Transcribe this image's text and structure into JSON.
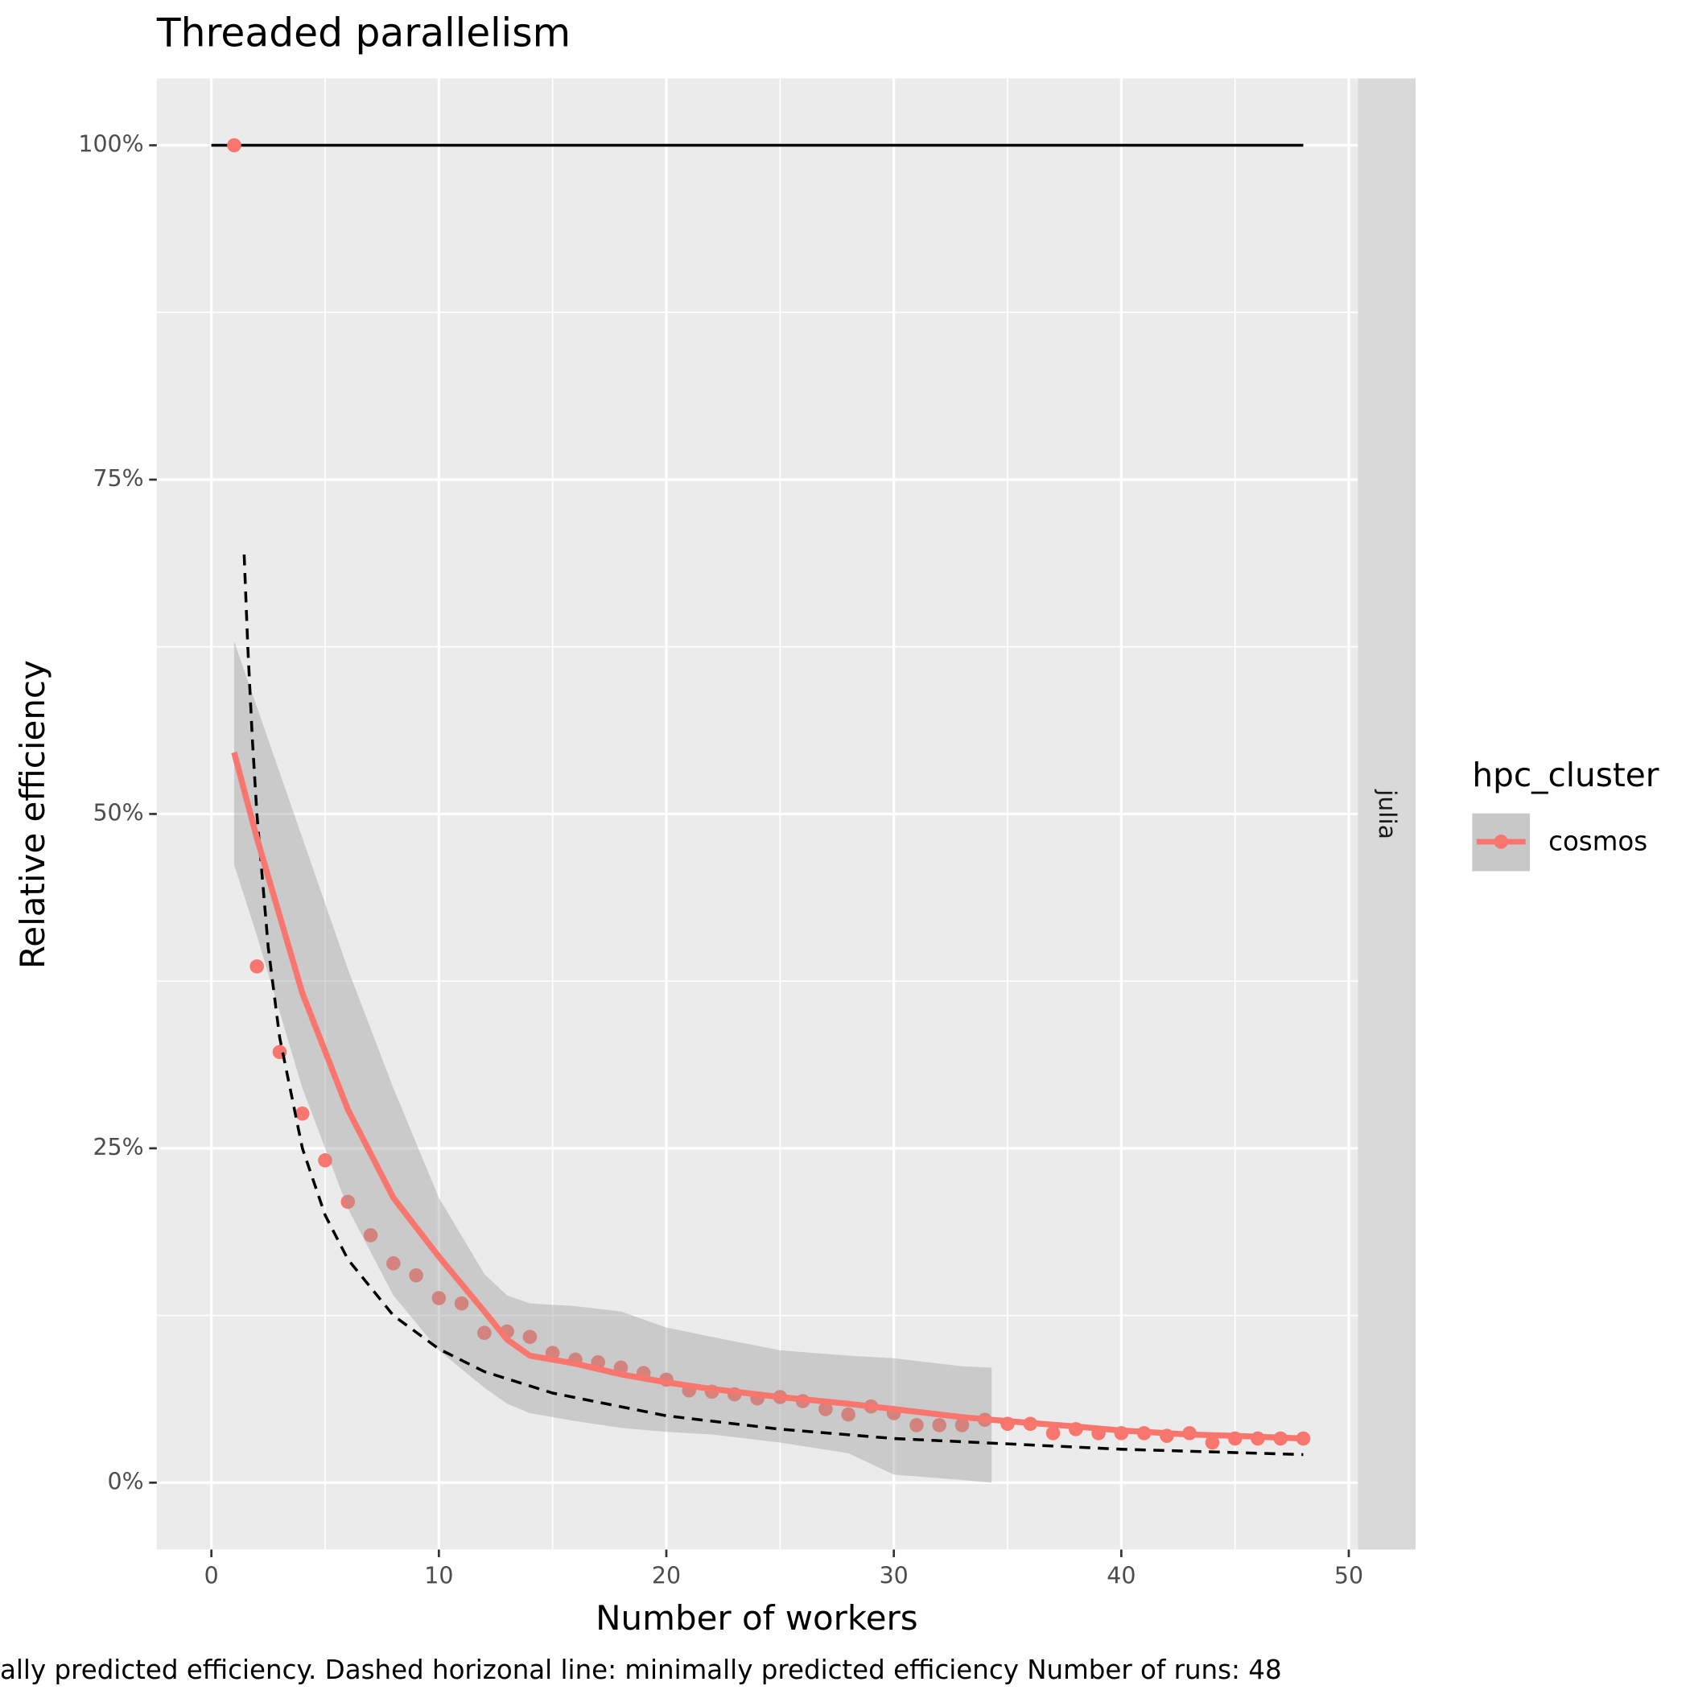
{
  "chart_data": {
    "type": "scatter",
    "title": "Threaded parallelism",
    "x_label": "Number of workers",
    "y_label": "Relative efficiency",
    "caption": "ally predicted efficiency. Dashed horizonal line: minimally predicted efficiency Number of runs: 48",
    "facet": "julia",
    "legend_title": "hpc_cluster",
    "xlim": [
      -2.4,
      50.4
    ],
    "ylim": [
      -5,
      105
    ],
    "xticks": [
      0,
      10,
      20,
      30,
      40,
      50
    ],
    "yticks": [
      {
        "value": 0,
        "label": "0%"
      },
      {
        "value": 25,
        "label": "25%"
      },
      {
        "value": 50,
        "label": "50%"
      },
      {
        "value": 75,
        "label": "75%"
      },
      {
        "value": 100,
        "label": "100%"
      }
    ],
    "grid": true,
    "series": [
      {
        "name": "cosmos",
        "color": "#F8766D",
        "x": [
          1,
          2,
          3,
          4,
          5,
          6,
          7,
          8,
          9,
          10,
          11,
          12,
          13,
          14,
          15,
          16,
          17,
          18,
          19,
          20,
          21,
          22,
          23,
          24,
          25,
          26,
          27,
          28,
          29,
          30,
          31,
          32,
          33,
          34,
          35,
          36,
          37,
          38,
          39,
          40,
          41,
          42,
          43,
          44,
          45,
          46,
          47,
          48
        ],
        "values": [
          100,
          38.6,
          32.2,
          27.6,
          24.1,
          21.0,
          18.5,
          16.4,
          15.5,
          13.8,
          13.4,
          11.2,
          11.3,
          10.9,
          9.7,
          9.2,
          9.0,
          8.6,
          8.2,
          7.7,
          6.9,
          6.8,
          6.6,
          6.3,
          6.4,
          6.1,
          5.5,
          5.1,
          5.7,
          5.2,
          4.3,
          4.3,
          4.3,
          4.7,
          4.4,
          4.4,
          3.7,
          4.0,
          3.7,
          3.7,
          3.7,
          3.5,
          3.7,
          3.0,
          3.3,
          3.3,
          3.3,
          3.3
        ]
      }
    ],
    "smooth": {
      "color": "#F8766D",
      "x": [
        1,
        2,
        4,
        6,
        8,
        10,
        12,
        13,
        14,
        16,
        18,
        20,
        22,
        25,
        28,
        30,
        33,
        35,
        38,
        40,
        43,
        45,
        48
      ],
      "values": [
        54.6,
        48.2,
        36.6,
        27.9,
        21.3,
        16.9,
        12.8,
        10.7,
        9.5,
        8.9,
        8.1,
        7.5,
        7.0,
        6.4,
        5.9,
        5.5,
        4.9,
        4.6,
        4.2,
        3.9,
        3.6,
        3.5,
        3.3
      ]
    },
    "confidence_band": {
      "color": "#999999",
      "x": [
        1,
        2,
        4,
        6,
        8,
        10,
        12,
        13,
        14,
        16,
        18,
        20,
        22,
        25,
        28,
        30,
        33,
        34.3
      ],
      "upper": [
        62.9,
        58.0,
        48.2,
        38.4,
        29.5,
        21.3,
        15.6,
        14.0,
        13.4,
        13.2,
        12.8,
        11.6,
        10.9,
        9.9,
        9.5,
        9.3,
        8.7,
        8.6
      ],
      "lower": [
        46.2,
        40.9,
        29.5,
        20.5,
        14.0,
        9.9,
        7.1,
        5.9,
        5.2,
        4.6,
        4.1,
        3.8,
        3.6,
        3.0,
        2.2,
        0.6,
        0.2,
        0
      ]
    },
    "predicted_curve": {
      "color": "#000000",
      "x": [
        1.44,
        1.6,
        1.8,
        2,
        2.5,
        3,
        4,
        5,
        6,
        8,
        10,
        12,
        15,
        20,
        25,
        30,
        35,
        40,
        48
      ],
      "values": [
        69.4,
        62.5,
        55.6,
        50,
        40,
        33.3,
        25,
        20,
        16.7,
        12.5,
        10,
        8.3,
        6.7,
        5,
        4,
        3.3,
        2.9,
        2.5,
        2.1
      ]
    },
    "reference_line": {
      "color": "#000000",
      "x": [
        0,
        48
      ],
      "values": [
        100,
        100
      ]
    }
  }
}
